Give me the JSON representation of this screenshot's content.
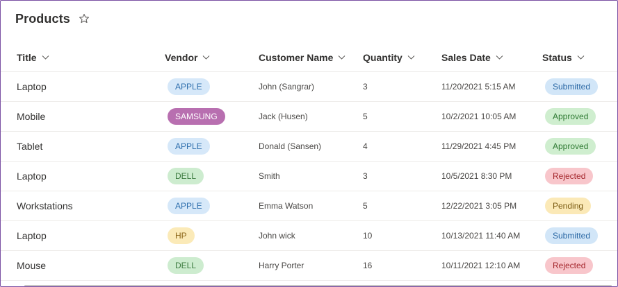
{
  "page": {
    "title": "Products",
    "favorite_icon": "star-outline-icon"
  },
  "columns": [
    {
      "key": "title",
      "label": "Title"
    },
    {
      "key": "vendor",
      "label": "Vendor"
    },
    {
      "key": "customer",
      "label": "Customer Name"
    },
    {
      "key": "quantity",
      "label": "Quantity"
    },
    {
      "key": "sales_date",
      "label": "Sales Date"
    },
    {
      "key": "status",
      "label": "Status"
    }
  ],
  "vendor_colors": {
    "APPLE": {
      "bg": "#d6e8f9",
      "fg": "#2f6fad"
    },
    "SAMSUNG": {
      "bg": "#b86fb0",
      "fg": "#ffffff"
    },
    "DELL": {
      "bg": "#cdeccf",
      "fg": "#3b7a3e"
    },
    "HP": {
      "bg": "#fbeab8",
      "fg": "#8a6416"
    }
  },
  "status_colors": {
    "Submitted": {
      "bg": "#d2e6f8",
      "fg": "#2866a3"
    },
    "Approved": {
      "bg": "#cfeecf",
      "fg": "#2f7a33"
    },
    "Rejected": {
      "bg": "#f8c6cb",
      "fg": "#a4262c"
    },
    "Pending": {
      "bg": "#fbe9b7",
      "fg": "#7a5a10"
    }
  },
  "rows": [
    {
      "title": "Laptop",
      "vendor": "APPLE",
      "customer": "John (Sangrar)",
      "quantity": "3",
      "sales_date": "11/20/2021 5:15 AM",
      "status": "Submitted"
    },
    {
      "title": "Mobile",
      "vendor": "SAMSUNG",
      "customer": "Jack (Husen)",
      "quantity": "5",
      "sales_date": "10/2/2021 10:05 AM",
      "status": "Approved"
    },
    {
      "title": "Tablet",
      "vendor": "APPLE",
      "customer": "Donald (Sansen)",
      "quantity": "4",
      "sales_date": "11/29/2021 4:45 PM",
      "status": "Approved"
    },
    {
      "title": "Laptop",
      "vendor": "DELL",
      "customer": "Smith",
      "quantity": "3",
      "sales_date": "10/5/2021 8:30 PM",
      "status": "Rejected"
    },
    {
      "title": "Workstations",
      "vendor": "APPLE",
      "customer": "Emma Watson",
      "quantity": "5",
      "sales_date": "12/22/2021 3:05 PM",
      "status": "Pending"
    },
    {
      "title": "Laptop",
      "vendor": "HP",
      "customer": "John wick",
      "quantity": "10",
      "sales_date": "10/13/2021 11:40 AM",
      "status": "Submitted"
    },
    {
      "title": "Mouse",
      "vendor": "DELL",
      "customer": "Harry Porter",
      "quantity": "16",
      "sales_date": "10/11/2021 12:10 AM",
      "status": "Rejected"
    }
  ]
}
